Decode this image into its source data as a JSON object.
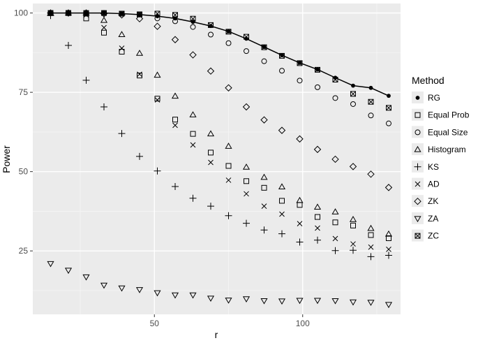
{
  "chart_data": {
    "type": "scatter",
    "xlabel": "r",
    "ylabel": "Power",
    "xlim": [
      9,
      133
    ],
    "ylim": [
      5,
      103
    ],
    "x_ticks": [
      50,
      100
    ],
    "x_tick_labels": [
      "50",
      "100"
    ],
    "y_ticks": [
      25,
      50,
      75,
      100
    ],
    "y_tick_labels": [
      "25",
      "50",
      "75",
      "100"
    ],
    "grid": true,
    "legend_title": "Method",
    "legend_position": "right",
    "x": [
      15,
      21,
      27,
      33,
      39,
      45,
      51,
      57,
      63,
      69,
      75,
      81,
      87,
      93,
      99,
      105,
      111,
      117,
      123,
      129
    ],
    "series": [
      {
        "name": "RG",
        "shape": "filled-circle",
        "line": true,
        "values": [
          100,
          100,
          100,
          100,
          99.8,
          99.5,
          99,
          98.3,
          97.2,
          95.9,
          94.2,
          91.9,
          89.3,
          86.7,
          84.3,
          82.2,
          79.6,
          77.1,
          76.4,
          73.9
        ]
      },
      {
        "name": "Equal Prob",
        "shape": "square",
        "values": [
          100,
          100,
          98.3,
          93.8,
          87.8,
          80.3,
          73,
          66.4,
          61.9,
          56,
          51.8,
          47,
          44.9,
          40.8,
          39.5,
          35.7,
          34,
          33,
          30,
          29
        ]
      },
      {
        "name": "Equal Size",
        "shape": "circle",
        "values": [
          100,
          100,
          100,
          100,
          99.8,
          99.5,
          98.3,
          97.4,
          95.6,
          93.2,
          90.5,
          88,
          84.8,
          81.8,
          78.7,
          76.6,
          73.2,
          71.3,
          67.7,
          65.2
        ]
      },
      {
        "name": "Histogram",
        "shape": "triangle-up",
        "values": [
          100,
          100,
          100,
          97.7,
          93.2,
          87.3,
          80.4,
          73.8,
          67.9,
          61.9,
          58,
          51.4,
          48.2,
          45.2,
          40.9,
          38.8,
          37.3,
          34.9,
          32.1,
          30.3
        ]
      },
      {
        "name": "KS",
        "shape": "plus",
        "values": [
          99.2,
          89.8,
          78.8,
          70.4,
          62,
          54.8,
          50.2,
          45.3,
          41.6,
          39.1,
          36.1,
          33.7,
          31.6,
          30.4,
          27.8,
          28.4,
          25.1,
          25.2,
          23.2,
          23.6
        ]
      },
      {
        "name": "AD",
        "shape": "cross",
        "values": [
          100,
          100,
          99.4,
          95.4,
          88.9,
          80.7,
          72.6,
          64.6,
          58.4,
          52.9,
          47.3,
          43,
          39.1,
          36.6,
          33.6,
          32.2,
          28.9,
          27.2,
          26.2,
          25.5
        ]
      },
      {
        "name": "ZK",
        "shape": "diamond",
        "values": [
          100,
          100,
          100,
          99.8,
          99.4,
          98.2,
          95.8,
          91.6,
          86.8,
          81.7,
          76.4,
          70.4,
          66.3,
          63,
          60.3,
          57,
          53.9,
          51.6,
          49.2,
          45
        ]
      },
      {
        "name": "ZA",
        "shape": "triangle-down",
        "values": [
          21,
          18.9,
          16.8,
          14.2,
          13.3,
          12.8,
          11.8,
          11.1,
          11.1,
          10.1,
          9.5,
          9.9,
          9.3,
          9.2,
          9.4,
          9.4,
          9.3,
          8.9,
          8.8,
          8.1
        ]
      },
      {
        "name": "ZC",
        "shape": "square-x",
        "values": [
          100,
          100,
          100,
          100,
          99.8,
          99.6,
          99.8,
          99.4,
          98.2,
          96.2,
          94.1,
          92.5,
          89.2,
          86.5,
          84.2,
          82.1,
          79,
          74.5,
          72,
          70.1
        ]
      }
    ]
  }
}
